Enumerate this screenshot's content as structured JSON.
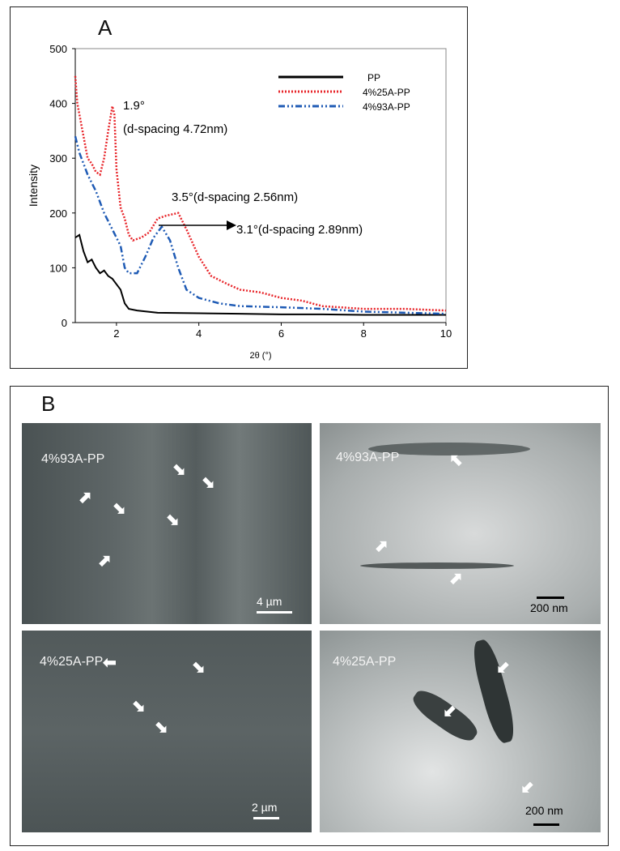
{
  "panel_a_label": "A",
  "panel_b_label": "B",
  "chart_data": {
    "type": "line",
    "xlabel": "2θ (°)",
    "ylabel": "Intensity",
    "xlim": [
      1,
      10
    ],
    "ylim": [
      0,
      500
    ],
    "xticks": [
      2,
      4,
      6,
      8,
      10
    ],
    "yticks": [
      0,
      100,
      200,
      300,
      400,
      500
    ],
    "grid": false,
    "legend_position": "top-right",
    "series": [
      {
        "name": "PP",
        "color": "#000000",
        "style": "solid",
        "x": [
          1,
          1.1,
          1.2,
          1.3,
          1.4,
          1.5,
          1.6,
          1.7,
          1.8,
          1.9,
          2.0,
          2.1,
          2.2,
          2.3,
          2.5,
          3,
          4,
          5,
          6,
          7,
          8,
          9,
          10
        ],
        "y": [
          155,
          160,
          130,
          110,
          115,
          100,
          90,
          95,
          85,
          80,
          70,
          60,
          35,
          25,
          22,
          18,
          17,
          16,
          15,
          15,
          14,
          14,
          14
        ]
      },
      {
        "name": "4%25A-PP",
        "color": "#e8262b",
        "style": "dotted",
        "x": [
          1,
          1.05,
          1.1,
          1.2,
          1.3,
          1.4,
          1.5,
          1.6,
          1.7,
          1.8,
          1.9,
          1.95,
          2.0,
          2.1,
          2.2,
          2.3,
          2.4,
          2.6,
          2.8,
          3.0,
          3.2,
          3.5,
          3.7,
          4.0,
          4.3,
          4.7,
          5.0,
          5.5,
          6,
          6.5,
          7,
          8,
          9,
          10
        ],
        "y": [
          450,
          400,
          380,
          340,
          300,
          290,
          275,
          270,
          300,
          350,
          395,
          380,
          280,
          210,
          190,
          160,
          150,
          155,
          165,
          190,
          195,
          200,
          170,
          120,
          85,
          70,
          60,
          55,
          45,
          40,
          30,
          25,
          25,
          22
        ]
      },
      {
        "name": "4%93A-PP",
        "color": "#1f5bb5",
        "style": "dash-dot-dot",
        "x": [
          1,
          1.1,
          1.2,
          1.3,
          1.5,
          1.7,
          1.9,
          2.1,
          2.2,
          2.3,
          2.5,
          2.7,
          2.9,
          3.1,
          3.3,
          3.5,
          3.7,
          4.0,
          4.5,
          5,
          6,
          7,
          8,
          9,
          10
        ],
        "y": [
          340,
          310,
          290,
          270,
          240,
          200,
          170,
          140,
          100,
          90,
          90,
          120,
          155,
          175,
          150,
          100,
          60,
          45,
          35,
          30,
          28,
          25,
          20,
          18,
          16
        ]
      }
    ],
    "annotations": [
      "1.9°",
      "(d-spacing 4.72nm)",
      "3.5°(d-spacing 2.56nm)",
      "3.1°(d-spacing 2.89nm)"
    ]
  },
  "micrographs": [
    {
      "label": "4%93A-PP",
      "scale": "4 µm"
    },
    {
      "label": "4%93A-PP",
      "scale": "200 nm"
    },
    {
      "label": "4%25A-PP",
      "scale": "2 µm"
    },
    {
      "label": "4%25A-PP",
      "scale": "200 nm"
    }
  ]
}
